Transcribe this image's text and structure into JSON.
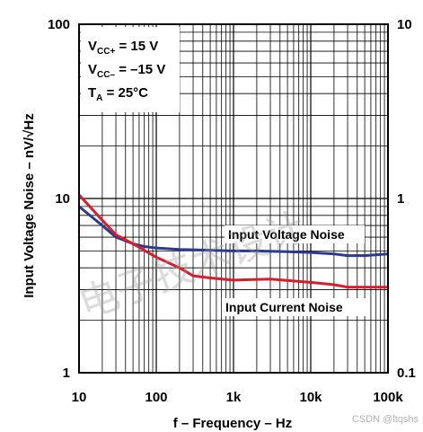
{
  "chart_data": {
    "type": "line",
    "xlabel": "f – Frequency – Hz",
    "ylabel": "Input Voltage Noise – nV/√Hz",
    "x_scale": "log",
    "y_scale": "log",
    "xlim": [
      10,
      100000
    ],
    "ylim": [
      1,
      100
    ],
    "ylim_right": [
      0.1,
      10
    ],
    "x_ticks": [
      "10",
      "100",
      "1k",
      "10k",
      "100k"
    ],
    "y_ticks_left": [
      "1",
      "10",
      "100"
    ],
    "y_ticks_right": [
      "0.1",
      "1",
      "10"
    ],
    "grid": true,
    "conditions": [
      {
        "base": "V",
        "sub": "CC+",
        "value": " = 15 V"
      },
      {
        "base": "V",
        "sub": "CC–",
        "value": " = –15 V"
      },
      {
        "base": "T",
        "sub": "A",
        "value": " = 25°C"
      }
    ],
    "series": [
      {
        "name": "Input Voltage Noise",
        "color": "#2b3a8c",
        "axis": "left",
        "x": [
          10,
          20,
          30,
          50,
          70,
          100,
          200,
          500,
          1000,
          2000,
          5000,
          10000,
          20000,
          30000,
          50000,
          100000
        ],
        "y": [
          9.0,
          7.0,
          6.0,
          5.5,
          5.3,
          5.2,
          5.1,
          5.05,
          5.0,
          5.0,
          4.95,
          4.9,
          4.8,
          4.7,
          4.7,
          4.8
        ]
      },
      {
        "name": "Input Current Noise",
        "color": "#d81e2a",
        "axis": "right",
        "x": [
          10,
          20,
          30,
          50,
          100,
          200,
          300,
          500,
          1000,
          3000,
          10000,
          20000,
          30000,
          50000,
          100000
        ],
        "y": [
          1.05,
          0.75,
          0.62,
          0.55,
          0.46,
          0.4,
          0.36,
          0.35,
          0.34,
          0.345,
          0.33,
          0.32,
          0.31,
          0.31,
          0.31
        ]
      }
    ]
  },
  "watermark": "电子技术设计",
  "credit": "CSDN @ltqshs"
}
